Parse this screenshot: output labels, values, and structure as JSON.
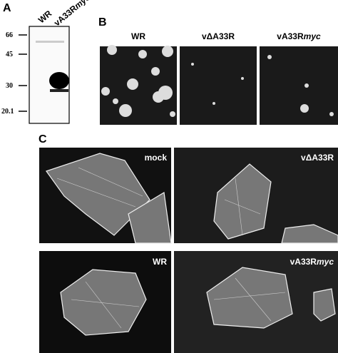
{
  "panel_a": {
    "label": "A",
    "lanes": [
      "WR",
      {
        "main": "vA33R",
        "italic": "myc"
      }
    ],
    "markers": [
      "66",
      "45",
      "30",
      "20.1"
    ]
  },
  "panel_b": {
    "label": "B",
    "columns": [
      "WR",
      "vΔA33R",
      {
        "main": "vA33R",
        "italic": "myc"
      }
    ]
  },
  "panel_c": {
    "label": "C",
    "images": [
      "mock",
      "vΔA33R",
      "WR",
      {
        "main": "vA33R",
        "italic": "myc"
      }
    ]
  }
}
